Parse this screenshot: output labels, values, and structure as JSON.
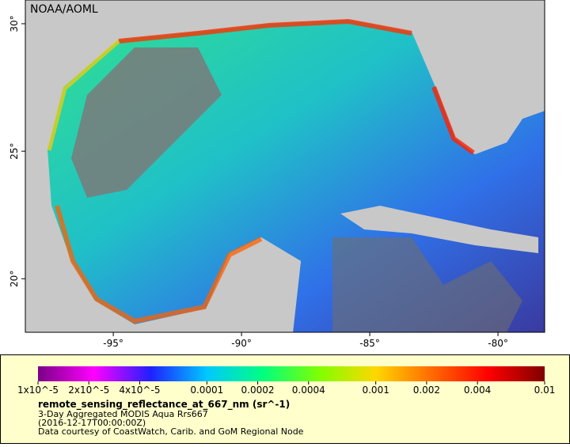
{
  "map": {
    "watermark": "NOAA/AOML",
    "xlim": [
      -98.43,
      -78.18
    ],
    "ylim": [
      17.9,
      30.93
    ],
    "xticks": [
      {
        "value": -95,
        "label": "-95°"
      },
      {
        "value": -90,
        "label": "-90°"
      },
      {
        "value": -85,
        "label": "-85°"
      },
      {
        "value": -80,
        "label": "-80°"
      }
    ],
    "yticks": [
      {
        "value": 20,
        "label": "20°"
      },
      {
        "value": 25,
        "label": "25°"
      },
      {
        "value": 30,
        "label": "30°"
      }
    ]
  },
  "legend": {
    "title": "remote_sensing_reflectance_at_667_nm (sr^-1)",
    "lines": [
      "3-Day Aggregated MODIS Aqua Rrs667",
      "(2016-12-17T00:00:00Z)",
      "Data courtesy of CoastWatch, Carib. and GoM Regional Node"
    ],
    "log_scale": true,
    "range": [
      1e-05,
      0.01
    ],
    "colors": [
      "#7a0087",
      "#ff00ff",
      "#2020ff",
      "#00c8ff",
      "#00ff80",
      "#80ff00",
      "#ffd700",
      "#ff6a00",
      "#ff0000",
      "#800000"
    ],
    "ticks": [
      {
        "value": 1e-05,
        "label": "1x10^-5"
      },
      {
        "value": 2e-05,
        "label": "2x10^-5"
      },
      {
        "value": 4e-05,
        "label": "4x10^-5"
      },
      0.0001,
      0.0002,
      0.0004,
      0.001,
      0.002,
      0.004,
      0.01
    ]
  }
}
